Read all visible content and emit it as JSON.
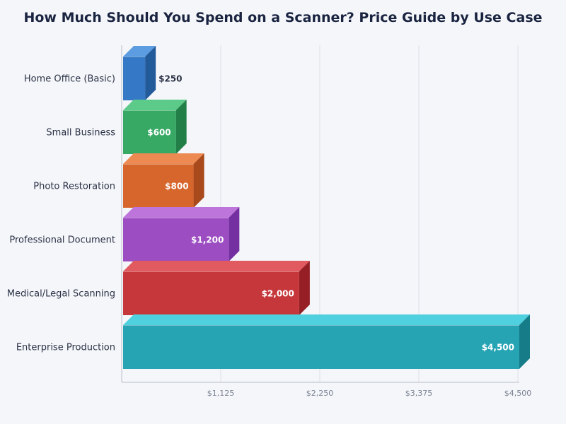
{
  "chart_data": {
    "type": "bar",
    "orientation": "horizontal",
    "title": "How Much Should You Spend on a Scanner? Price Guide by Use Case",
    "xlabel": "",
    "ylabel": "",
    "categories": [
      "Home Office (Basic)",
      "Small Business",
      "Photo Restoration",
      "Professional Document",
      "Medical/Legal Scanning",
      "Enterprise Production"
    ],
    "values": [
      250,
      600,
      800,
      1200,
      2000,
      4500
    ],
    "value_labels": [
      "$250",
      "$600",
      "$800",
      "$1,200",
      "$2,000",
      "$4,500"
    ],
    "xlim": [
      0,
      4500
    ],
    "ticks": [
      1125,
      2250,
      3375,
      4500
    ],
    "tick_labels": [
      "$1,125",
      "$2,250",
      "$3,375",
      "$4,500"
    ],
    "grid": true,
    "style": "3d-bars",
    "colors": [
      "#3478c6",
      "#37a965",
      "#d6662c",
      "#9b4dc1",
      "#c5373b",
      "#27a4b4"
    ],
    "top_colors": [
      "#5b9de0",
      "#5ccb89",
      "#ed8a52",
      "#bd75db",
      "#e05a60",
      "#4fd0de"
    ],
    "side_colors": [
      "#235a9a",
      "#237f48",
      "#a84a1b",
      "#7430a0",
      "#951f24",
      "#157c88"
    ]
  }
}
